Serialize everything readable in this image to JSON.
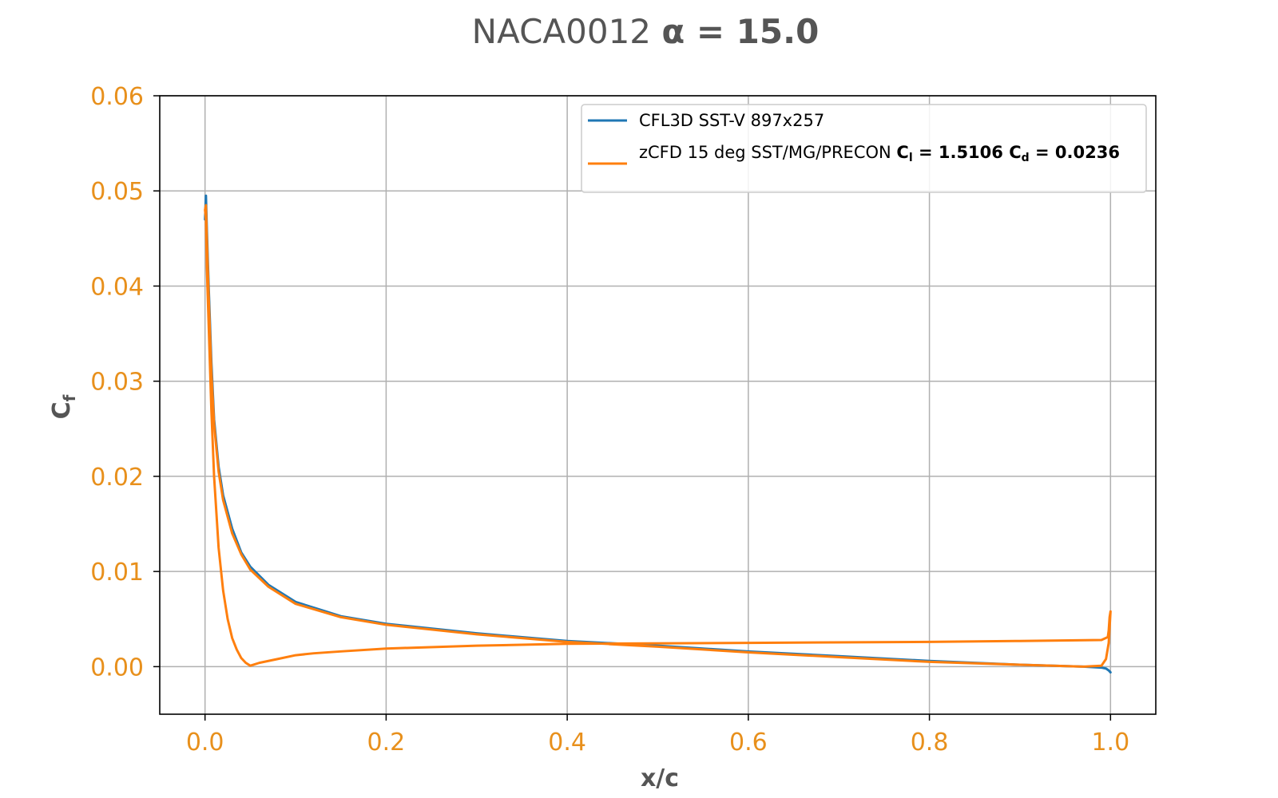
{
  "chart_data": {
    "type": "line",
    "title": {
      "main": "NACA0012 ",
      "bold": "α = 15.0"
    },
    "xlabel": "x/c",
    "ylabel": {
      "base": "C",
      "sub": "f"
    },
    "xlim": [
      -0.05,
      1.05
    ],
    "ylim": [
      -0.005,
      0.06
    ],
    "xticks": [
      "0.0",
      "0.2",
      "0.4",
      "0.6",
      "0.8",
      "1.0"
    ],
    "xtick_values": [
      0.0,
      0.2,
      0.4,
      0.6,
      0.8,
      1.0
    ],
    "yticks": [
      "0.00",
      "0.01",
      "0.02",
      "0.03",
      "0.04",
      "0.05",
      "0.06"
    ],
    "ytick_values": [
      0.0,
      0.01,
      0.02,
      0.03,
      0.04,
      0.05,
      0.06
    ],
    "grid": true,
    "legend_position": "top-right",
    "legend": {
      "entry1": "CFL3D SST-V 897x257",
      "entry2_text": "zCFD 15 deg SST/MG/PRECON ",
      "cl_label": "C",
      "cl_sub": "l",
      "cl_value": " = 1.5106 ",
      "cd_label": "C",
      "cd_sub": "d",
      "cd_value": " = 0.0236"
    },
    "colors": {
      "series1": "#1f77b4",
      "series2": "#ff7f0e",
      "tick_labels": "#e8901c",
      "axis_text": "#555555",
      "grid": "#b0b0b0"
    },
    "series": [
      {
        "name": "CFL3D SST-V 897x257",
        "color": "#1f77b4",
        "points": [
          [
            0.0,
            0.047
          ],
          [
            0.001,
            0.0495
          ],
          [
            0.002,
            0.046
          ],
          [
            0.004,
            0.04
          ],
          [
            0.007,
            0.032
          ],
          [
            0.01,
            0.026
          ],
          [
            0.015,
            0.021
          ],
          [
            0.02,
            0.018
          ],
          [
            0.03,
            0.0145
          ],
          [
            0.04,
            0.012
          ],
          [
            0.05,
            0.0105
          ],
          [
            0.07,
            0.0086
          ],
          [
            0.1,
            0.0068
          ],
          [
            0.15,
            0.0053
          ],
          [
            0.2,
            0.0045
          ],
          [
            0.3,
            0.0035
          ],
          [
            0.4,
            0.0027
          ],
          [
            0.5,
            0.0022
          ],
          [
            0.6,
            0.0016
          ],
          [
            0.7,
            0.0011
          ],
          [
            0.8,
            0.0006
          ],
          [
            0.9,
            0.0002
          ],
          [
            0.97,
            0.0
          ],
          [
            0.99,
            -0.0001
          ],
          [
            0.995,
            -0.0002
          ],
          [
            0.998,
            -0.0004
          ],
          [
            1.0,
            -0.0006
          ]
        ]
      },
      {
        "name": "zCFD 15 deg SST/MG/PRECON",
        "color": "#ff7f0e",
        "points": [
          [
            1.0,
            0.0058
          ],
          [
            0.999,
            0.0052
          ],
          [
            0.998,
            0.0038
          ],
          [
            0.997,
            0.0031
          ],
          [
            0.99,
            0.0028
          ],
          [
            0.9,
            0.0027
          ],
          [
            0.8,
            0.0026
          ],
          [
            0.6,
            0.0025
          ],
          [
            0.4,
            0.0024
          ],
          [
            0.3,
            0.0022
          ],
          [
            0.2,
            0.0019
          ],
          [
            0.15,
            0.0016
          ],
          [
            0.12,
            0.0014
          ],
          [
            0.1,
            0.0012
          ],
          [
            0.08,
            0.0008
          ],
          [
            0.07,
            0.0006
          ],
          [
            0.06,
            0.0004
          ],
          [
            0.05,
            0.0001
          ],
          [
            0.045,
            0.0004
          ],
          [
            0.04,
            0.0009
          ],
          [
            0.035,
            0.0018
          ],
          [
            0.03,
            0.003
          ],
          [
            0.025,
            0.005
          ],
          [
            0.02,
            0.008
          ],
          [
            0.015,
            0.0125
          ],
          [
            0.01,
            0.02
          ],
          [
            0.007,
            0.027
          ],
          [
            0.005,
            0.033
          ],
          [
            0.003,
            0.039
          ],
          [
            0.002,
            0.042
          ],
          [
            0.001,
            0.047
          ],
          [
            0.0,
            0.048
          ],
          [
            0.001,
            0.0485
          ],
          [
            0.002,
            0.045
          ],
          [
            0.004,
            0.039
          ],
          [
            0.007,
            0.031
          ],
          [
            0.01,
            0.0255
          ],
          [
            0.015,
            0.0205
          ],
          [
            0.02,
            0.0175
          ],
          [
            0.03,
            0.014
          ],
          [
            0.04,
            0.0118
          ],
          [
            0.05,
            0.0102
          ],
          [
            0.07,
            0.0084
          ],
          [
            0.1,
            0.0066
          ],
          [
            0.15,
            0.0052
          ],
          [
            0.2,
            0.0044
          ],
          [
            0.3,
            0.0034
          ],
          [
            0.4,
            0.0026
          ],
          [
            0.5,
            0.0021
          ],
          [
            0.6,
            0.0015
          ],
          [
            0.7,
            0.001
          ],
          [
            0.8,
            0.0005
          ],
          [
            0.9,
            0.0002
          ],
          [
            0.97,
            0.0
          ],
          [
            0.99,
            0.0001
          ],
          [
            0.995,
            0.0008
          ],
          [
            0.998,
            0.0025
          ],
          [
            1.0,
            0.0058
          ]
        ]
      }
    ]
  }
}
